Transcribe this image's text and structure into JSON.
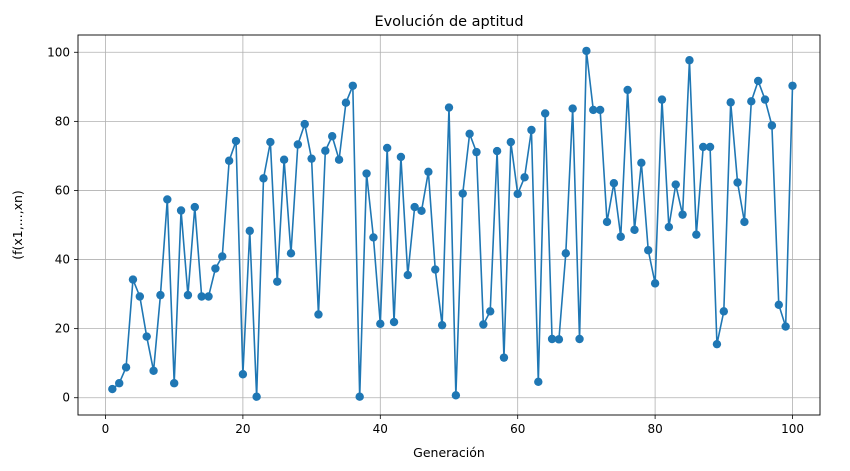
{
  "chart_data": {
    "type": "line",
    "title": "Evolución de aptitud",
    "xlabel": "Generación",
    "ylabel": "(f(x1,...,xn)",
    "xlim": [
      -4,
      104
    ],
    "ylim": [
      -5,
      105
    ],
    "xticks": [
      0,
      20,
      40,
      60,
      80,
      100
    ],
    "yticks": [
      0,
      20,
      40,
      60,
      80,
      100
    ],
    "grid": true,
    "legend": "none",
    "markers": "circle",
    "series": [
      {
        "color": "#1f77b4",
        "x": [
          1,
          2,
          3,
          4,
          5,
          6,
          7,
          8,
          9,
          10,
          11,
          12,
          13,
          14,
          15,
          16,
          17,
          18,
          19,
          20,
          21,
          22,
          23,
          24,
          25,
          26,
          27,
          28,
          29,
          30,
          31,
          32,
          33,
          34,
          35,
          36,
          37,
          38,
          39,
          40,
          41,
          42,
          43,
          44,
          45,
          46,
          47,
          48,
          49,
          50,
          51,
          52,
          53,
          54,
          55,
          56,
          57,
          58,
          59,
          60,
          61,
          62,
          63,
          64,
          65,
          66,
          67,
          68,
          69,
          70,
          71,
          72,
          73,
          74,
          75,
          76,
          77,
          78,
          79,
          80,
          81,
          82,
          83,
          84,
          85,
          86,
          87,
          88,
          89,
          90,
          91,
          92,
          93,
          94,
          95,
          96,
          97,
          98,
          99,
          100
        ],
        "y": [
          2.5,
          4.2,
          8.8,
          34.2,
          29.3,
          17.7,
          7.8,
          29.7,
          57.4,
          4.2,
          54.2,
          29.7,
          55.2,
          29.3,
          29.3,
          37.4,
          40.9,
          68.6,
          74.3,
          6.8,
          48.3,
          0.3,
          63.5,
          74.0,
          33.6,
          68.9,
          41.8,
          73.3,
          79.2,
          69.2,
          24.1,
          71.5,
          75.7,
          68.9,
          85.4,
          90.3,
          0.3,
          64.9,
          46.4,
          21.4,
          72.3,
          21.9,
          69.7,
          35.5,
          55.2,
          54.1,
          65.4,
          37.1,
          21.0,
          84.0,
          0.7,
          59.1,
          76.4,
          71.1,
          21.2,
          25.0,
          71.4,
          11.6,
          74.0,
          59.0,
          63.8,
          77.5,
          4.6,
          82.3,
          17.0,
          16.9,
          41.8,
          83.7,
          17.0,
          100.4,
          83.3,
          83.3,
          50.9,
          62.1,
          46.6,
          89.1,
          48.6,
          68.0,
          42.7,
          33.1,
          86.3,
          49.4,
          61.7,
          53.0,
          97.7,
          47.2,
          72.6,
          72.6,
          15.5,
          25.0,
          85.5,
          62.3,
          50.9,
          85.8,
          91.7,
          86.3,
          78.8,
          26.9,
          20.6,
          90.3
        ]
      }
    ]
  }
}
